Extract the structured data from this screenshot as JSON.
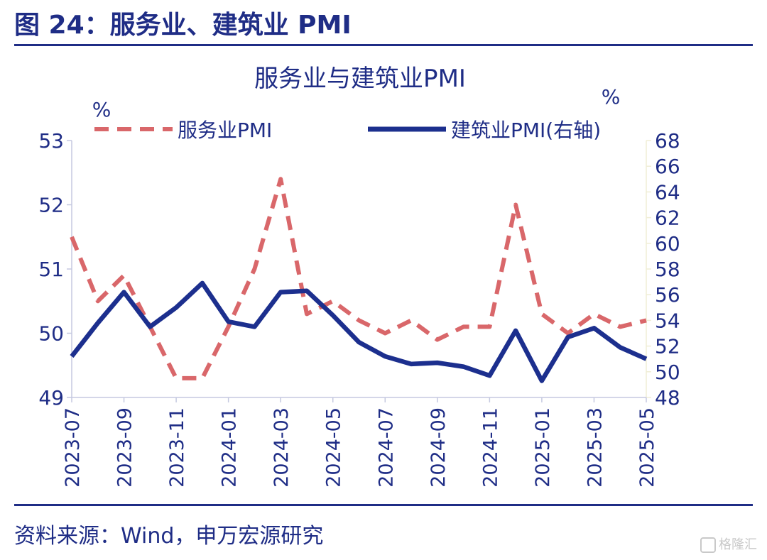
{
  "figure": {
    "title": "图 24：服务业、建筑业 PMI",
    "source": "资料来源：Wind，申万宏源研究",
    "watermark": "格隆汇"
  },
  "colors": {
    "primary": "#1f2d86",
    "services": "#d9676a",
    "construction": "#1c2f8e",
    "right_axis": "#f0eed6"
  },
  "chart_data": {
    "type": "line",
    "title": "服务业与建筑业PMI",
    "left_unit": "%",
    "right_unit": "%",
    "legend_position": "top",
    "grid": false,
    "x": [
      "2023-07",
      "2023-08",
      "2023-09",
      "2023-10",
      "2023-11",
      "2023-12",
      "2024-01",
      "2024-02",
      "2024-03",
      "2024-04",
      "2024-05",
      "2024-06",
      "2024-07",
      "2024-08",
      "2024-09",
      "2024-10",
      "2024-11",
      "2024-12",
      "2025-01",
      "2025-02",
      "2025-03",
      "2025-04",
      "2025-05"
    ],
    "x_tick_labels": [
      "2023-07",
      "2023-09",
      "2023-11",
      "2024-01",
      "2024-03",
      "2024-05",
      "2024-07",
      "2024-09",
      "2024-11",
      "2025-01",
      "2025-03",
      "2025-05"
    ],
    "y_left": {
      "min": 49,
      "max": 53,
      "ticks": [
        49,
        50,
        51,
        52,
        53
      ]
    },
    "y_right": {
      "min": 48,
      "max": 68,
      "ticks": [
        48,
        50,
        52,
        54,
        56,
        58,
        60,
        62,
        64,
        66,
        68
      ]
    },
    "series": [
      {
        "name": "服务业PMI",
        "axis": "left",
        "style": "dashed",
        "values": [
          51.5,
          50.5,
          50.9,
          50.1,
          49.3,
          49.3,
          50.1,
          51.0,
          52.4,
          50.3,
          50.5,
          50.2,
          50.0,
          50.2,
          49.9,
          50.1,
          50.1,
          52.0,
          50.3,
          50.0,
          50.3,
          50.1,
          50.2
        ]
      },
      {
        "name": "建筑业PMI(右轴)",
        "axis": "right",
        "style": "solid",
        "values": [
          51.2,
          53.8,
          56.2,
          53.5,
          55.0,
          56.9,
          53.9,
          53.5,
          56.2,
          56.3,
          54.4,
          52.3,
          51.2,
          50.6,
          50.7,
          50.4,
          49.7,
          53.2,
          49.3,
          52.7,
          53.4,
          51.9,
          51.0
        ]
      }
    ]
  }
}
